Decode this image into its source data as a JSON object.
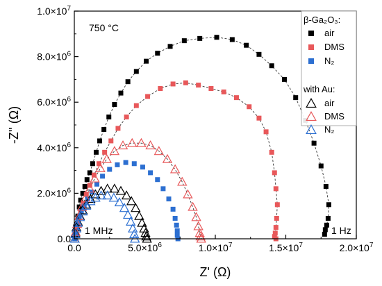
{
  "chart_data": {
    "type": "scatter",
    "title": "",
    "xlabel": "Z' (Ω)",
    "ylabel": "-Z'' (Ω)",
    "xlim": [
      0,
      20000000
    ],
    "ylim": [
      0,
      10000000
    ],
    "x_ticks": [
      {
        "value": 0,
        "label": "0.0"
      },
      {
        "value": 5000000,
        "label": "5.0×10^6"
      },
      {
        "value": 10000000,
        "label": "1.0×10^7"
      },
      {
        "value": 15000000,
        "label": "1.5×10^7"
      },
      {
        "value": 20000000,
        "label": "2.0×10^7"
      }
    ],
    "y_ticks": [
      {
        "value": 0,
        "label": "0.0"
      },
      {
        "value": 2000000,
        "label": "2.0×10^6"
      },
      {
        "value": 4000000,
        "label": "4.0×10^6"
      },
      {
        "value": 6000000,
        "label": "6.0×10^6"
      },
      {
        "value": 8000000,
        "label": "8.0×10^6"
      },
      {
        "value": 10000000,
        "label": "1.0×10^7"
      }
    ],
    "annotations": {
      "temperature": "750 °C",
      "low_freq": "1 MHz",
      "high_freq": "1 Hz"
    },
    "legend": {
      "placement": "top-right",
      "group1_title": "β-Ga₂O₃:",
      "group2_title": "with Au:"
    },
    "series": [
      {
        "name": "air",
        "group": "β-Ga₂O₃",
        "marker": "square",
        "color": "#000000",
        "fit": true,
        "points": [
          [
            50000,
            0
          ],
          [
            100000,
            300000
          ],
          [
            150000,
            600000
          ],
          [
            250000,
            1000000
          ],
          [
            350000,
            1400000
          ],
          [
            450000,
            1700000
          ],
          [
            600000,
            2000000
          ],
          [
            750000,
            2300000
          ],
          [
            900000,
            2600000
          ],
          [
            1100000,
            2900000
          ],
          [
            1300000,
            3300000
          ],
          [
            1550000,
            3800000
          ],
          [
            1800000,
            4300000
          ],
          [
            2100000,
            4800000
          ],
          [
            2450000,
            5350000
          ],
          [
            2850000,
            5900000
          ],
          [
            3300000,
            6400000
          ],
          [
            3800000,
            6900000
          ],
          [
            4400000,
            7350000
          ],
          [
            5100000,
            7800000
          ],
          [
            5900000,
            8150000
          ],
          [
            6800000,
            8450000
          ],
          [
            7800000,
            8700000
          ],
          [
            8900000,
            8800000
          ],
          [
            10100000,
            8850000
          ],
          [
            11200000,
            8750000
          ],
          [
            12200000,
            8500000
          ],
          [
            13100000,
            8100000
          ],
          [
            14000000,
            7600000
          ],
          [
            14900000,
            7000000
          ],
          [
            15700000,
            6200000
          ],
          [
            16400000,
            5200000
          ],
          [
            17000000,
            4200000
          ],
          [
            17500000,
            3200000
          ],
          [
            17850000,
            2300000
          ],
          [
            18050000,
            1500000
          ],
          [
            18000000,
            900000
          ],
          [
            17900000,
            600000
          ],
          [
            17800000,
            400000
          ],
          [
            17750000,
            200000
          ]
        ]
      },
      {
        "name": "DMS",
        "group": "β-Ga₂O₃",
        "marker": "square",
        "color": "#e8585a",
        "fit": true,
        "points": [
          [
            50000,
            0
          ],
          [
            100000,
            250000
          ],
          [
            200000,
            550000
          ],
          [
            300000,
            850000
          ],
          [
            450000,
            1200000
          ],
          [
            650000,
            1550000
          ],
          [
            850000,
            1950000
          ],
          [
            1100000,
            2350000
          ],
          [
            1400000,
            2800000
          ],
          [
            1750000,
            3300000
          ],
          [
            2150000,
            3800000
          ],
          [
            2600000,
            4300000
          ],
          [
            3100000,
            4850000
          ],
          [
            3700000,
            5350000
          ],
          [
            4400000,
            5850000
          ],
          [
            5200000,
            6250000
          ],
          [
            6100000,
            6600000
          ],
          [
            7000000,
            6800000
          ],
          [
            7900000,
            6850000
          ],
          [
            8800000,
            6750000
          ],
          [
            9700000,
            6600000
          ],
          [
            10600000,
            6450000
          ],
          [
            11500000,
            6200000
          ],
          [
            12400000,
            5800000
          ],
          [
            13100000,
            5300000
          ],
          [
            13600000,
            4700000
          ],
          [
            14000000,
            3800000
          ],
          [
            14200000,
            2900000
          ],
          [
            14300000,
            2200000
          ],
          [
            14400000,
            1500000
          ],
          [
            14350000,
            900000
          ],
          [
            14300000,
            500000
          ],
          [
            14250000,
            250000
          ],
          [
            14200000,
            100000
          ],
          [
            14300000,
            0
          ]
        ]
      },
      {
        "name": "N₂",
        "group": "β-Ga₂O₃",
        "marker": "square",
        "color": "#2c6fd1",
        "fit": false,
        "points": [
          [
            30000,
            0
          ],
          [
            80000,
            200000
          ],
          [
            150000,
            450000
          ],
          [
            250000,
            700000
          ],
          [
            350000,
            950000
          ],
          [
            500000,
            1200000
          ],
          [
            700000,
            1450000
          ],
          [
            950000,
            1750000
          ],
          [
            1250000,
            2050000
          ],
          [
            1600000,
            2400000
          ],
          [
            2000000,
            2750000
          ],
          [
            2500000,
            3050000
          ],
          [
            3050000,
            3250000
          ],
          [
            3650000,
            3350000
          ],
          [
            4250000,
            3300000
          ],
          [
            4850000,
            3150000
          ],
          [
            5400000,
            2900000
          ],
          [
            5900000,
            2600000
          ],
          [
            6300000,
            2200000
          ],
          [
            6700000,
            1750000
          ],
          [
            7000000,
            1300000
          ],
          [
            7150000,
            900000
          ],
          [
            7250000,
            600000
          ],
          [
            7300000,
            350000
          ],
          [
            7300000,
            150000
          ],
          [
            7350000,
            0
          ]
        ]
      },
      {
        "name": "air",
        "group": "with Au",
        "marker": "triangle",
        "color": "#000000",
        "fit": false,
        "points": [
          [
            30000,
            0
          ],
          [
            80000,
            250000
          ],
          [
            150000,
            500000
          ],
          [
            250000,
            750000
          ],
          [
            400000,
            1000000
          ],
          [
            600000,
            1250000
          ],
          [
            850000,
            1500000
          ],
          [
            1150000,
            1750000
          ],
          [
            1500000,
            1950000
          ],
          [
            1900000,
            2100000
          ],
          [
            2350000,
            2200000
          ],
          [
            2850000,
            2200000
          ],
          [
            3300000,
            2100000
          ],
          [
            3700000,
            1900000
          ],
          [
            4050000,
            1650000
          ],
          [
            4350000,
            1350000
          ],
          [
            4600000,
            1000000
          ],
          [
            4800000,
            700000
          ],
          [
            4950000,
            450000
          ],
          [
            5050000,
            250000
          ],
          [
            5100000,
            100000
          ],
          [
            5150000,
            0
          ]
        ]
      },
      {
        "name": "DMS",
        "group": "with Au",
        "marker": "triangle",
        "color": "#e8585a",
        "fit": true,
        "points": [
          [
            30000,
            0
          ],
          [
            100000,
            300000
          ],
          [
            200000,
            650000
          ],
          [
            350000,
            1000000
          ],
          [
            550000,
            1400000
          ],
          [
            800000,
            1800000
          ],
          [
            1100000,
            2200000
          ],
          [
            1450000,
            2650000
          ],
          [
            1850000,
            3100000
          ],
          [
            2300000,
            3500000
          ],
          [
            2850000,
            3850000
          ],
          [
            3450000,
            4100000
          ],
          [
            4100000,
            4200000
          ],
          [
            4750000,
            4200000
          ],
          [
            5400000,
            4100000
          ],
          [
            6000000,
            3850000
          ],
          [
            6600000,
            3500000
          ],
          [
            7150000,
            3050000
          ],
          [
            7650000,
            2500000
          ],
          [
            8050000,
            1950000
          ],
          [
            8400000,
            1400000
          ],
          [
            8650000,
            950000
          ],
          [
            8800000,
            550000
          ],
          [
            8900000,
            250000
          ],
          [
            8950000,
            100000
          ],
          [
            9000000,
            0
          ]
        ]
      },
      {
        "name": "N₂",
        "group": "with Au",
        "marker": "triangle",
        "color": "#2c6fd1",
        "fit": false,
        "points": [
          [
            30000,
            0
          ],
          [
            80000,
            200000
          ],
          [
            150000,
            450000
          ],
          [
            250000,
            700000
          ],
          [
            400000,
            950000
          ],
          [
            600000,
            1200000
          ],
          [
            850000,
            1450000
          ],
          [
            1150000,
            1650000
          ],
          [
            1500000,
            1800000
          ],
          [
            1900000,
            1900000
          ],
          [
            2350000,
            1900000
          ],
          [
            2800000,
            1800000
          ],
          [
            3200000,
            1600000
          ],
          [
            3550000,
            1350000
          ],
          [
            3800000,
            1050000
          ],
          [
            4000000,
            750000
          ],
          [
            4150000,
            450000
          ],
          [
            4250000,
            200000
          ],
          [
            4300000,
            0
          ]
        ]
      }
    ]
  }
}
